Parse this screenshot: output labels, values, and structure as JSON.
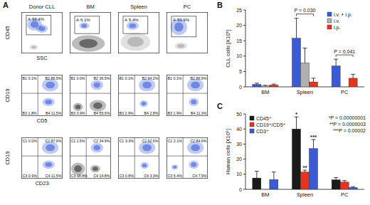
{
  "panel_a": {
    "title": "A",
    "columns": [
      "Donor CLL",
      "BM",
      "Spleen",
      "PC"
    ],
    "rows": [
      {
        "y_label": "CD45",
        "x_label": "SSC",
        "gates": [
          {
            "name": "A",
            "value": "93.4%"
          },
          {
            "name": "A",
            "value": "6.1%"
          },
          {
            "name": "A",
            "value": "5.4%"
          },
          {
            "name": "A",
            "value": "93.9%"
          }
        ]
      },
      {
        "y_label": "CD19",
        "x_label": "CD5",
        "quadrants": [
          [
            {
              "name": "B1",
              "value": "0.1%"
            },
            {
              "name": "B2",
              "value": "86.5%"
            },
            {
              "name": "B3",
              "value": "1.8%"
            },
            {
              "name": "B4",
              "value": "11.5%"
            }
          ],
          [
            {
              "name": "B1",
              "value": "0.0%"
            },
            {
              "name": "B2",
              "value": "36.5%"
            },
            {
              "name": "B3",
              "value": "3.9%"
            },
            {
              "name": "B4",
              "value": "55.6%"
            }
          ],
          [
            {
              "name": "B1",
              "value": "0.1%"
            },
            {
              "name": "B2",
              "value": "94.2%"
            },
            {
              "name": "B3",
              "value": "2.9%"
            },
            {
              "name": "B4",
              "value": "2.8%"
            }
          ],
          [
            {
              "name": "B1",
              "value": "0.1%"
            },
            {
              "name": "B2",
              "value": "86.9%"
            },
            {
              "name": "B3",
              "value": "1.9%"
            },
            {
              "name": "B4",
              "value": "11.3%"
            }
          ]
        ]
      },
      {
        "y_label": "CD19",
        "x_label": "CD23",
        "quadrants": [
          [
            {
              "name": "C1",
              "value": "0.0%"
            },
            {
              "name": "C2",
              "value": "87.6%"
            },
            {
              "name": "C3",
              "value": "0.9%"
            },
            {
              "name": "C4",
              "value": "11.5%"
            }
          ],
          [
            {
              "name": "C1",
              "value": "1.5%"
            },
            {
              "name": "C2",
              "value": "34.9%"
            },
            {
              "name": "C3",
              "value": "48.8%"
            },
            {
              "name": "C4",
              "value": "14.8%"
            }
          ],
          [
            {
              "name": "C1",
              "value": "3.3%"
            },
            {
              "name": "C2",
              "value": "92.6%"
            },
            {
              "name": "C3",
              "value": "0.8%"
            },
            {
              "name": "C4",
              "value": "3.3%"
            }
          ],
          [
            {
              "name": "C1",
              "value": "2.1%"
            },
            {
              "name": "C2",
              "value": "84.6%"
            },
            {
              "name": "C3",
              "value": "5.4%"
            },
            {
              "name": "C4",
              "value": "7.9%"
            }
          ]
        ]
      }
    ]
  },
  "chart_data": [
    {
      "type": "bar",
      "title": "B",
      "y_label": "CLL cells [X10⁶]",
      "categories": [
        "BM",
        "Spleen",
        "PC"
      ],
      "series": [
        {
          "name": "i.v. + i.p.",
          "color": "#3a5bd8",
          "values": [
            0.8,
            15.8,
            6.8
          ],
          "errors": [
            0.4,
            6.5,
            2.2
          ]
        },
        {
          "name": "i.v.",
          "color": "#b0b0b0",
          "values": [
            0.3,
            7.8,
            null
          ],
          "errors": [
            0.2,
            4.8,
            null
          ]
        },
        {
          "name": "i.p.",
          "color": "#e8321e",
          "values": [
            0.6,
            1.6,
            2.8
          ],
          "errors": [
            0.3,
            1.2,
            1.3
          ]
        }
      ],
      "ylim": [
        0,
        25
      ],
      "yticks": [
        0,
        5,
        10,
        15,
        20,
        25
      ],
      "legend": "top-right",
      "annotations": [
        {
          "text": "P = 0.030",
          "category": "Spleen"
        },
        {
          "text": "P = 0.041",
          "category": "PC"
        }
      ]
    },
    {
      "type": "bar",
      "title": "C",
      "y_label": "Human cells [X10⁶]",
      "categories": [
        "BM",
        "Spleen",
        "PC"
      ],
      "series": [
        {
          "name": "CD45⁺",
          "color": "#1a1a1a",
          "values": [
            7.5,
            40,
            6.3
          ],
          "errors": [
            4.5,
            8,
            1.5
          ]
        },
        {
          "name": "CD19⁺/CD5⁺",
          "color": "#e8321e",
          "values": [
            null,
            11.5,
            4.8
          ],
          "errors": [
            null,
            1.2,
            1
          ]
        },
        {
          "name": "CD3⁺",
          "color": "#3a5bd8",
          "values": [
            6.5,
            27,
            1.2
          ],
          "errors": [
            5,
            6,
            0.5
          ]
        }
      ],
      "ylim": [
        0,
        50
      ],
      "yticks": [
        0,
        10,
        20,
        30,
        40,
        50
      ],
      "legend": "top-left",
      "annotations": [
        {
          "text": "*",
          "category": "Spleen",
          "series": "CD45⁺"
        },
        {
          "text": "**",
          "category": "Spleen",
          "series": "CD19⁺/CD5⁺"
        },
        {
          "text": "***",
          "category": "Spleen",
          "series": "CD3⁺"
        },
        {
          "text": "*P = 0.00000001"
        },
        {
          "text": "**P = 0.0000003"
        },
        {
          "text": "***P = 0.00002"
        }
      ]
    }
  ]
}
